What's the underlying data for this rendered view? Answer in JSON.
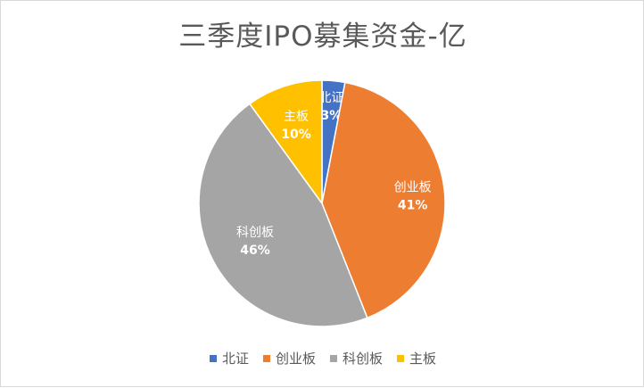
{
  "chart_data": {
    "type": "pie",
    "title": "三季度IPO募集资金-亿",
    "legend_position": "bottom",
    "slices": [
      {
        "label": "北证",
        "percent_label": "3%",
        "value": 3,
        "color": "#4472C4"
      },
      {
        "label": "创业板",
        "percent_label": "41%",
        "value": 41,
        "color": "#ED7D31"
      },
      {
        "label": "科创板",
        "percent_label": "46%",
        "value": 46,
        "color": "#A5A5A5"
      },
      {
        "label": "主板",
        "percent_label": "10%",
        "value": 10,
        "color": "#FFC000"
      }
    ]
  }
}
